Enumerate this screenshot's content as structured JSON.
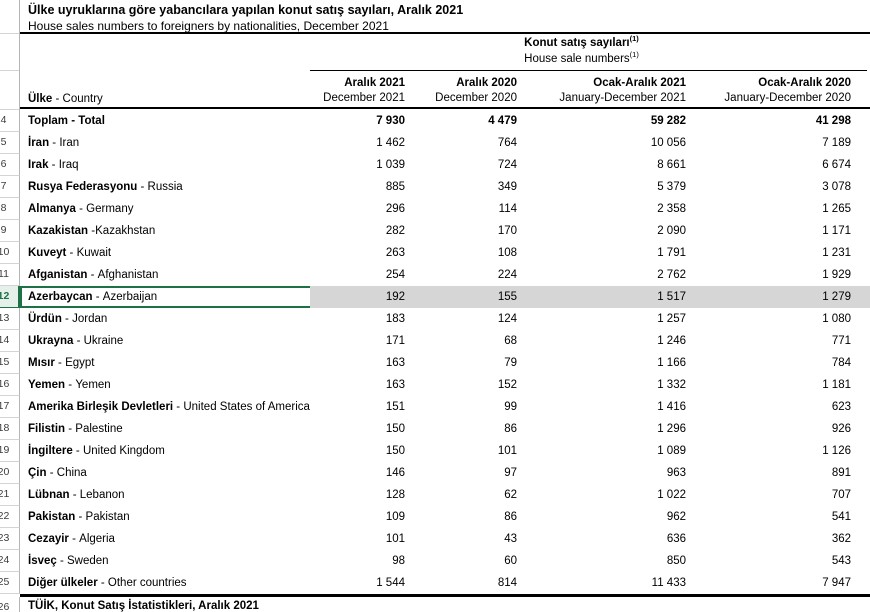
{
  "title_tr": "Ülke uyruklarına göre yabancılara yapılan konut satış sayıları, Aralık 2021",
  "title_en": "House sales numbers to foreigners by nationalities, December 2021",
  "table": {
    "group_header_tr": "Konut satış sayıları",
    "group_header_en": "House sale numbers",
    "footnote_marker": "(1)",
    "row_header": {
      "tr": "Ülke",
      "sep": " - ",
      "en": "Country"
    },
    "columns": [
      {
        "tr": "Aralık 2021",
        "en": "December 2021"
      },
      {
        "tr": "Aralık 2020",
        "en": "December 2020"
      },
      {
        "tr": "Ocak-Aralık 2021",
        "en": "January-December 2021"
      },
      {
        "tr": "Ocak-Aralık 2020",
        "en": "January-December 2020"
      }
    ],
    "rows": [
      {
        "row_num": "4",
        "tr": "Toplam",
        "sep": " - ",
        "en": "Total",
        "values": [
          "7 930",
          "4 479",
          "59 282",
          "41 298"
        ],
        "totals": true
      },
      {
        "row_num": "5",
        "tr": "İran",
        "sep": " - ",
        "en": "Iran",
        "values": [
          "1 462",
          "764",
          "10 056",
          "7 189"
        ]
      },
      {
        "row_num": "6",
        "tr": "Irak",
        "sep": " - ",
        "en": "Iraq",
        "values": [
          "1 039",
          "724",
          "8 661",
          "6 674"
        ]
      },
      {
        "row_num": "7",
        "tr": "Rusya Federasyonu",
        "sep": " - ",
        "en": "Russia",
        "values": [
          "885",
          "349",
          "5 379",
          "3 078"
        ]
      },
      {
        "row_num": "8",
        "tr": "Almanya",
        "sep": " - ",
        "en": "Germany",
        "values": [
          "296",
          "114",
          "2 358",
          "1 265"
        ]
      },
      {
        "row_num": "9",
        "tr": "Kazakistan",
        "sep": " -",
        "en": "Kazakhstan",
        "values": [
          "282",
          "170",
          "2 090",
          "1 171"
        ]
      },
      {
        "row_num": "10",
        "tr": "Kuveyt",
        "sep": " - ",
        "en": "Kuwait",
        "values": [
          "263",
          "108",
          "1 791",
          "1 231"
        ]
      },
      {
        "row_num": "11",
        "tr": "Afganistan",
        "sep": " - ",
        "en": "Afghanistan",
        "values": [
          "254",
          "224",
          "2 762",
          "1 929"
        ]
      },
      {
        "row_num": "12",
        "tr": "Azerbaycan",
        "sep": " - ",
        "en": "Azerbaijan",
        "values": [
          "192",
          "155",
          "1 517",
          "1 279"
        ],
        "selected": true
      },
      {
        "row_num": "13",
        "tr": "Ürdün",
        "sep": " - ",
        "en": "Jordan",
        "values": [
          "183",
          "124",
          "1 257",
          "1 080"
        ]
      },
      {
        "row_num": "14",
        "tr": "Ukrayna",
        "sep": " - ",
        "en": "Ukraine",
        "values": [
          "171",
          "68",
          "1 246",
          "771"
        ]
      },
      {
        "row_num": "15",
        "tr": "Mısır",
        "sep": " - ",
        "en": "Egypt",
        "values": [
          "163",
          "79",
          "1 166",
          "784"
        ]
      },
      {
        "row_num": "16",
        "tr": "Yemen",
        "sep": " - ",
        "en": "Yemen",
        "values": [
          "163",
          "152",
          "1 332",
          "1 181"
        ]
      },
      {
        "row_num": "17",
        "tr": "Amerika Birleşik Devletleri",
        "sep": " - ",
        "en": "United States of America",
        "values": [
          "151",
          "99",
          "1 416",
          "623"
        ]
      },
      {
        "row_num": "18",
        "tr": "Filistin",
        "sep": " - ",
        "en": "Palestine",
        "values": [
          "150",
          "86",
          "1 296",
          "926"
        ]
      },
      {
        "row_num": "19",
        "tr": "İngiltere",
        "sep": " - ",
        "en": "United Kingdom",
        "values": [
          "150",
          "101",
          "1 089",
          "1 126"
        ]
      },
      {
        "row_num": "20",
        "tr": "Çin",
        "sep": " - ",
        "en": "China",
        "values": [
          "146",
          "97",
          "963",
          "891"
        ]
      },
      {
        "row_num": "21",
        "tr": "Lübnan",
        "sep": " - ",
        "en": "Lebanon",
        "values": [
          "128",
          "62",
          "1 022",
          "707"
        ]
      },
      {
        "row_num": "22",
        "tr": "Pakistan",
        "sep": " - ",
        "en": "Pakistan",
        "values": [
          "109",
          "86",
          "962",
          "541"
        ]
      },
      {
        "row_num": "23",
        "tr": "Cezayir",
        "sep": " - ",
        "en": "Algeria",
        "values": [
          "101",
          "43",
          "636",
          "362"
        ]
      },
      {
        "row_num": "24",
        "tr": "İsveç",
        "sep": " - ",
        "en": "Sweden",
        "values": [
          "98",
          "60",
          "850",
          "543"
        ]
      },
      {
        "row_num": "25",
        "tr": "Diğer ülkeler",
        "sep": " - ",
        "en": "Other countries",
        "values": [
          "1 544",
          "814",
          "11 433",
          "7 947"
        ]
      }
    ]
  },
  "footer": {
    "row_num": "26",
    "text": "TÜİK, Konut Satış İstatistikleri, Aralık 2021"
  },
  "colors": {
    "selection_green": "#1E7145",
    "selection_fill": "#D6D6D6",
    "selection_header_fill": "#E5F0EA"
  }
}
